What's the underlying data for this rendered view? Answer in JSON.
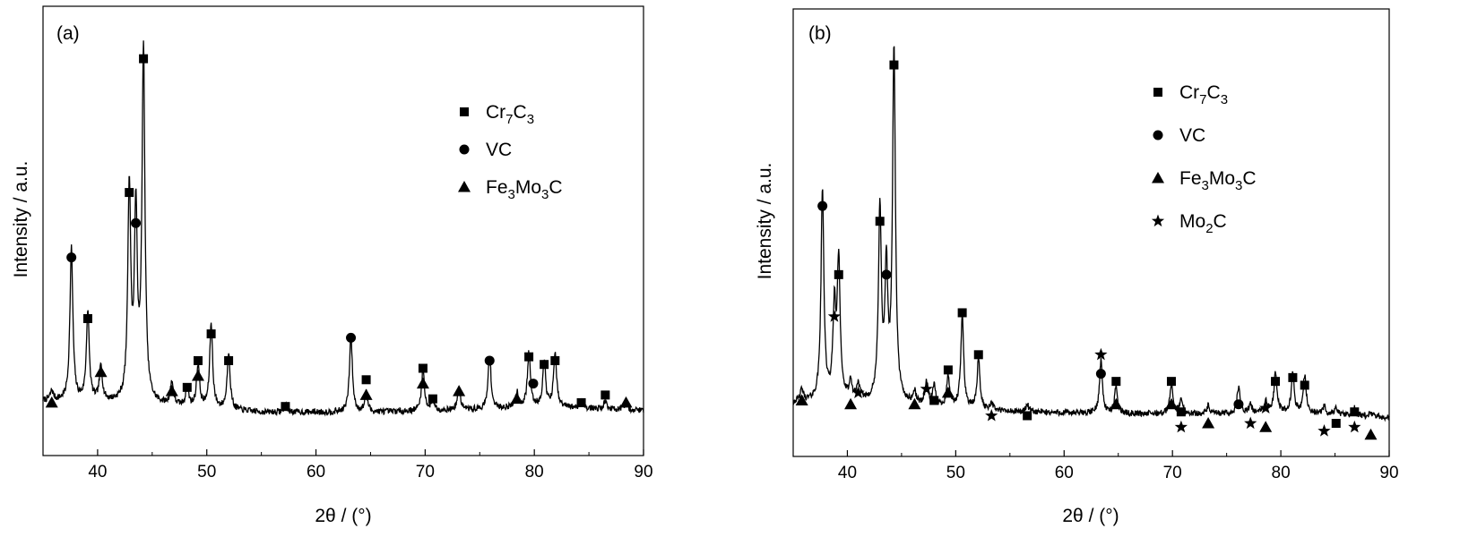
{
  "chart_data": [
    {
      "type": "line",
      "panel_label": "(a)",
      "xlabel": "2θ / (°)",
      "ylabel": "Intensity / a.u.",
      "xlim": [
        35,
        90
      ],
      "ylim": [
        0,
        100
      ],
      "xticks": [
        40,
        50,
        60,
        70,
        80,
        90
      ],
      "legend_position": "top-right",
      "legend": [
        {
          "marker": "square",
          "label": "Cr7C3",
          "parts": [
            [
              "Cr",
              ""
            ],
            [
              "7",
              "sub"
            ],
            [
              "C",
              ""
            ],
            [
              "3",
              "sub"
            ]
          ]
        },
        {
          "marker": "circle",
          "label": "VC",
          "parts": [
            [
              "VC",
              ""
            ]
          ]
        },
        {
          "marker": "triangle",
          "label": "Fe3Mo3C",
          "parts": [
            [
              "Fe",
              ""
            ],
            [
              "3",
              "sub"
            ],
            [
              "Mo",
              ""
            ],
            [
              "3",
              "sub"
            ],
            [
              "C",
              ""
            ]
          ]
        }
      ],
      "series": [
        {
          "peaks": [
            [
              35.8,
              2.5
            ],
            [
              37.6,
              40
            ],
            [
              39.1,
              23
            ],
            [
              40.3,
              9
            ],
            [
              42.9,
              56
            ],
            [
              43.5,
              48
            ],
            [
              44.2,
              92
            ],
            [
              46.8,
              6
            ],
            [
              48.2,
              5
            ],
            [
              49.2,
              11
            ],
            [
              50.4,
              22
            ],
            [
              52.0,
              15
            ],
            [
              57.2,
              2
            ],
            [
              63.2,
              20
            ],
            [
              64.6,
              5
            ],
            [
              69.8,
              11
            ],
            [
              70.7,
              3
            ],
            [
              73.1,
              6
            ],
            [
              75.9,
              14
            ],
            [
              78.4,
              4
            ],
            [
              79.5,
              14
            ],
            [
              80.9,
              12
            ],
            [
              81.9,
              14
            ],
            [
              84.3,
              2
            ],
            [
              86.5,
              2
            ],
            [
              88.4,
              1.5
            ]
          ],
          "baseline": [
            [
              35,
              4.5
            ],
            [
              40,
              4.2
            ],
            [
              45,
              3.5
            ],
            [
              55,
              1.5
            ],
            [
              65,
              1.5
            ],
            [
              75,
              2.2
            ],
            [
              80,
              3
            ],
            [
              90,
              2
            ]
          ]
        }
      ],
      "annotations": [
        {
          "x": 35.8,
          "y": 4,
          "marker": "triangle"
        },
        {
          "x": 37.6,
          "y": 42,
          "marker": "circle"
        },
        {
          "x": 39.1,
          "y": 26,
          "marker": "square"
        },
        {
          "x": 40.3,
          "y": 12,
          "marker": "triangle"
        },
        {
          "x": 42.9,
          "y": 59,
          "marker": "square"
        },
        {
          "x": 43.5,
          "y": 51,
          "marker": "circle"
        },
        {
          "x": 44.2,
          "y": 94,
          "marker": "square"
        },
        {
          "x": 46.8,
          "y": 7,
          "marker": "triangle"
        },
        {
          "x": 48.2,
          "y": 8,
          "marker": "square"
        },
        {
          "x": 49.2,
          "y": 15,
          "marker": "square"
        },
        {
          "x": 49.2,
          "y": 11,
          "marker": "triangle"
        },
        {
          "x": 50.4,
          "y": 22,
          "marker": "square"
        },
        {
          "x": 52.0,
          "y": 15,
          "marker": "square"
        },
        {
          "x": 57.2,
          "y": 3,
          "marker": "square"
        },
        {
          "x": 63.2,
          "y": 21,
          "marker": "circle"
        },
        {
          "x": 64.6,
          "y": 10,
          "marker": "square"
        },
        {
          "x": 64.6,
          "y": 6,
          "marker": "triangle"
        },
        {
          "x": 69.8,
          "y": 13,
          "marker": "square"
        },
        {
          "x": 69.8,
          "y": 9,
          "marker": "triangle"
        },
        {
          "x": 70.7,
          "y": 5,
          "marker": "square"
        },
        {
          "x": 73.1,
          "y": 7,
          "marker": "triangle"
        },
        {
          "x": 75.9,
          "y": 15,
          "marker": "circle"
        },
        {
          "x": 78.4,
          "y": 5,
          "marker": "triangle"
        },
        {
          "x": 79.5,
          "y": 16,
          "marker": "square"
        },
        {
          "x": 79.9,
          "y": 9,
          "marker": "circle"
        },
        {
          "x": 80.9,
          "y": 14,
          "marker": "square"
        },
        {
          "x": 81.9,
          "y": 15,
          "marker": "square"
        },
        {
          "x": 84.3,
          "y": 4,
          "marker": "square"
        },
        {
          "x": 86.5,
          "y": 6,
          "marker": "square"
        },
        {
          "x": 88.4,
          "y": 4,
          "marker": "triangle"
        }
      ]
    },
    {
      "type": "line",
      "panel_label": "(b)",
      "xlabel": "2θ / (°)",
      "ylabel": "Intensity / a.u.",
      "xlim": [
        35,
        90
      ],
      "ylim": [
        0,
        100
      ],
      "xticks": [
        40,
        50,
        60,
        70,
        80,
        90
      ],
      "legend_position": "top-right",
      "legend": [
        {
          "marker": "square",
          "label": "Cr7C3",
          "parts": [
            [
              "Cr",
              ""
            ],
            [
              "7",
              "sub"
            ],
            [
              "C",
              ""
            ],
            [
              "3",
              "sub"
            ]
          ]
        },
        {
          "marker": "circle",
          "label": "VC",
          "parts": [
            [
              "VC",
              ""
            ]
          ]
        },
        {
          "marker": "triangle",
          "label": "Fe3Mo3C",
          "parts": [
            [
              "Fe",
              ""
            ],
            [
              "3",
              "sub"
            ],
            [
              "Mo",
              ""
            ],
            [
              "3",
              "sub"
            ],
            [
              "C",
              ""
            ]
          ]
        },
        {
          "marker": "star",
          "label": "Mo2C",
          "parts": [
            [
              "Mo",
              ""
            ],
            [
              "2",
              "sub"
            ],
            [
              "C",
              ""
            ]
          ]
        }
      ],
      "series": [
        {
          "peaks": [
            [
              35.8,
              3
            ],
            [
              37.7,
              55
            ],
            [
              38.8,
              23
            ],
            [
              39.2,
              36
            ],
            [
              40.3,
              4
            ],
            [
              41.0,
              4
            ],
            [
              43.0,
              50
            ],
            [
              43.6,
              33
            ],
            [
              44.3,
              92
            ],
            [
              46.2,
              3
            ],
            [
              47.3,
              6
            ],
            [
              48.0,
              5
            ],
            [
              49.3,
              8
            ],
            [
              50.6,
              24
            ],
            [
              52.1,
              13
            ],
            [
              53.3,
              2
            ],
            [
              56.6,
              2
            ],
            [
              63.4,
              14
            ],
            [
              64.8,
              7
            ],
            [
              69.9,
              8
            ],
            [
              70.8,
              4
            ],
            [
              73.3,
              2
            ],
            [
              76.1,
              7
            ],
            [
              77.2,
              2
            ],
            [
              78.6,
              3
            ],
            [
              79.5,
              10
            ],
            [
              81.1,
              10
            ],
            [
              82.2,
              10
            ],
            [
              84.0,
              2
            ],
            [
              85.1,
              2
            ],
            [
              86.8,
              2
            ],
            [
              88.3,
              1
            ]
          ],
          "baseline": [
            [
              35,
              5.5
            ],
            [
              40,
              6
            ],
            [
              45,
              5
            ],
            [
              55,
              3
            ],
            [
              65,
              2.5
            ],
            [
              75,
              2.5
            ],
            [
              80,
              3
            ],
            [
              90,
              1.5
            ]
          ]
        }
      ],
      "annotations": [
        {
          "x": 35.8,
          "y": 6,
          "marker": "triangle"
        },
        {
          "x": 37.7,
          "y": 57,
          "marker": "circle"
        },
        {
          "x": 38.8,
          "y": 28,
          "marker": "star"
        },
        {
          "x": 39.2,
          "y": 39,
          "marker": "square"
        },
        {
          "x": 40.3,
          "y": 5,
          "marker": "triangle"
        },
        {
          "x": 41.0,
          "y": 8,
          "marker": "star"
        },
        {
          "x": 43.0,
          "y": 53,
          "marker": "square"
        },
        {
          "x": 43.6,
          "y": 39,
          "marker": "circle"
        },
        {
          "x": 44.3,
          "y": 94,
          "marker": "square"
        },
        {
          "x": 46.2,
          "y": 5,
          "marker": "triangle"
        },
        {
          "x": 47.3,
          "y": 9,
          "marker": "star"
        },
        {
          "x": 48.0,
          "y": 6,
          "marker": "square"
        },
        {
          "x": 49.3,
          "y": 14,
          "marker": "square"
        },
        {
          "x": 49.3,
          "y": 8,
          "marker": "triangle"
        },
        {
          "x": 50.6,
          "y": 29,
          "marker": "square"
        },
        {
          "x": 52.1,
          "y": 18,
          "marker": "square"
        },
        {
          "x": 53.3,
          "y": 2,
          "marker": "star"
        },
        {
          "x": 56.6,
          "y": 2,
          "marker": "square"
        },
        {
          "x": 63.4,
          "y": 18,
          "marker": "star"
        },
        {
          "x": 63.4,
          "y": 13,
          "marker": "circle"
        },
        {
          "x": 64.8,
          "y": 11,
          "marker": "square"
        },
        {
          "x": 64.8,
          "y": 5,
          "marker": "triangle"
        },
        {
          "x": 69.9,
          "y": 11,
          "marker": "square"
        },
        {
          "x": 69.9,
          "y": 5,
          "marker": "triangle"
        },
        {
          "x": 70.8,
          "y": 3,
          "marker": "square"
        },
        {
          "x": 70.8,
          "y": -1,
          "marker": "star"
        },
        {
          "x": 73.3,
          "y": 0,
          "marker": "triangle"
        },
        {
          "x": 76.1,
          "y": 5,
          "marker": "circle"
        },
        {
          "x": 77.2,
          "y": 0,
          "marker": "star"
        },
        {
          "x": 78.6,
          "y": 4,
          "marker": "star"
        },
        {
          "x": 78.6,
          "y": -1,
          "marker": "triangle"
        },
        {
          "x": 79.5,
          "y": 11,
          "marker": "square"
        },
        {
          "x": 81.1,
          "y": 12,
          "marker": "square"
        },
        {
          "x": 82.2,
          "y": 10,
          "marker": "square"
        },
        {
          "x": 84.0,
          "y": -2,
          "marker": "star"
        },
        {
          "x": 85.1,
          "y": 0,
          "marker": "square"
        },
        {
          "x": 86.8,
          "y": -1,
          "marker": "star"
        },
        {
          "x": 86.8,
          "y": 3,
          "marker": "square"
        },
        {
          "x": 88.3,
          "y": -3,
          "marker": "triangle"
        }
      ]
    }
  ]
}
